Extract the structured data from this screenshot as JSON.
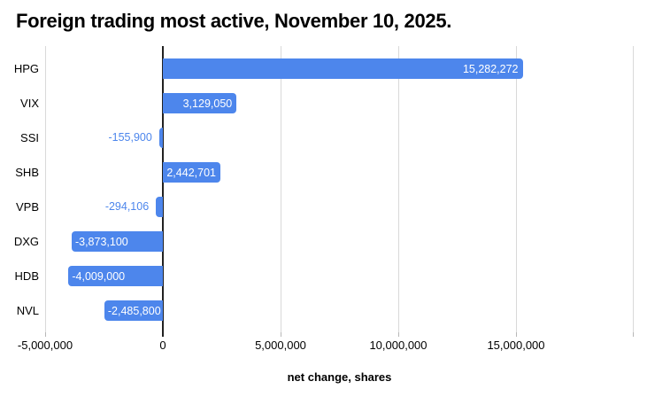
{
  "chart": {
    "title": "Foreign trading most active, November 10, 2025.",
    "xlabel": "net change, shares"
  },
  "chart_data": {
    "type": "bar",
    "orientation": "horizontal",
    "title": "Foreign trading most active, November 10, 2025.",
    "xlabel": "net change, shares",
    "ylabel": "",
    "categories": [
      "HPG",
      "VIX",
      "SSI",
      "SHB",
      "VPB",
      "DXG",
      "HDB",
      "NVL"
    ],
    "values": [
      15282272,
      3129050,
      -155900,
      2442701,
      -294106,
      -3873100,
      -4009000,
      -2485800
    ],
    "value_labels": [
      "15,282,272",
      "3,129,050",
      "-155,900",
      "2,442,701",
      "-294,106",
      "-3,873,100",
      "-4,009,000",
      "-2,485,800"
    ],
    "xlim": [
      -5000000,
      20000000
    ],
    "x_ticks": [
      -5000000,
      0,
      5000000,
      10000000,
      15000000,
      20000000
    ],
    "x_tick_labels": [
      "-5,000,000",
      "0",
      "5,000,000",
      "10,000,000",
      "15,000,000",
      ""
    ],
    "grid": true,
    "legend": false,
    "colors": {
      "bar": "#4d86ec",
      "label_inside": "#ffffff",
      "label_outside": "#4d86ec",
      "gridline": "#d9d9d9",
      "zero_axis": "#212121",
      "text": "#000000",
      "background": "#ffffff"
    }
  }
}
